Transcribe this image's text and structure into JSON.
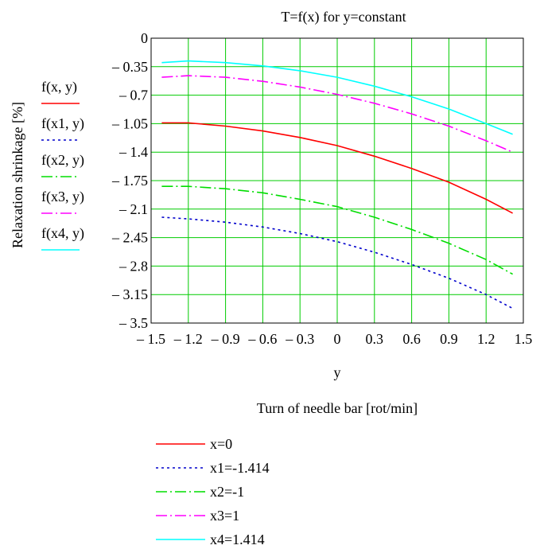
{
  "chart_data": {
    "type": "line",
    "title": "T=f(x) for y=constant",
    "xlabel": "y",
    "xlabel_note": "Turn of needle bar [rot/min]",
    "ylabel": "Relaxation shrinkage [%]",
    "xlim": [
      -1.5,
      1.5
    ],
    "ylim": [
      -3.5,
      0
    ],
    "grid": true,
    "x_ticks": [
      -1.5,
      -1.2,
      -0.9,
      -0.6,
      -0.3,
      0,
      0.3,
      0.6,
      0.9,
      1.2,
      1.5
    ],
    "x_tick_labels": [
      "– 1.5",
      "– 1.2",
      "– 0.9",
      "– 0.6",
      "– 0.3",
      "0",
      "0.3",
      "0.6",
      "0.9",
      "1.2",
      "1.5"
    ],
    "y_ticks": [
      0,
      -0.35,
      -0.7,
      -1.05,
      -1.4,
      -1.75,
      -2.1,
      -2.45,
      -2.8,
      -3.15,
      -3.5
    ],
    "y_tick_labels": [
      "0",
      "– 0.35",
      "– 0.7",
      "– 1.05",
      "– 1.4",
      "– 1.75",
      "– 2.1",
      "– 2.45",
      "– 2.8",
      "– 3.15",
      "– 3.5"
    ],
    "x": [
      -1.414,
      -1.2,
      -0.9,
      -0.6,
      -0.3,
      0,
      0.3,
      0.6,
      0.9,
      1.2,
      1.414
    ],
    "series": [
      {
        "name": "x=0",
        "axis_label": "f(x, y)",
        "color": "#ff0000",
        "dash": "solid",
        "values": [
          -1.04,
          -1.04,
          -1.08,
          -1.14,
          -1.22,
          -1.32,
          -1.45,
          -1.6,
          -1.77,
          -1.98,
          -2.15
        ]
      },
      {
        "name": "x1=-1.414",
        "axis_label": "f(x1, y)",
        "color": "#0000cc",
        "dash": "dot",
        "values": [
          -2.2,
          -2.22,
          -2.26,
          -2.32,
          -2.4,
          -2.5,
          -2.63,
          -2.78,
          -2.95,
          -3.15,
          -3.32
        ]
      },
      {
        "name": "x2=-1",
        "axis_label": "f(x2, y)",
        "color": "#00dd00",
        "dash": "dashdot",
        "values": [
          -1.82,
          -1.82,
          -1.85,
          -1.9,
          -1.98,
          -2.07,
          -2.2,
          -2.35,
          -2.52,
          -2.72,
          -2.9
        ]
      },
      {
        "name": "x3=1",
        "axis_label": "f(x3, y)",
        "color": "#ff00ff",
        "dash": "dashdot",
        "values": [
          -0.48,
          -0.46,
          -0.48,
          -0.53,
          -0.6,
          -0.69,
          -0.8,
          -0.93,
          -1.08,
          -1.26,
          -1.4
        ]
      },
      {
        "name": "x4=1.414",
        "axis_label": "f(x4, y)",
        "color": "#00ffff",
        "dash": "solid",
        "values": [
          -0.3,
          -0.28,
          -0.3,
          -0.34,
          -0.4,
          -0.48,
          -0.59,
          -0.72,
          -0.87,
          -1.05,
          -1.18
        ]
      }
    ]
  }
}
